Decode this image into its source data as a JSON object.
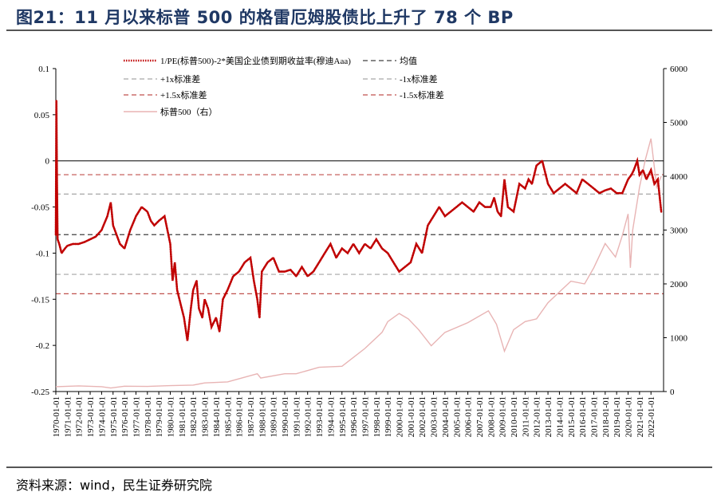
{
  "title": "图21：11 月以来标普 500 的格雷厄姆股债比上升了 78 个 BP",
  "source": "资料来源：wind，民生证券研究院",
  "colors": {
    "main": "#c00000",
    "mean": "#404040",
    "sd1": "#a6a6a6",
    "sd15": "#c0504d",
    "spx": "#e8b4b4",
    "zero": "#000000"
  },
  "chart_data": {
    "type": "line",
    "title": "",
    "xlabel": "",
    "ylabel": "",
    "ylim_left": [
      -0.25,
      0.1
    ],
    "ylim_right": [
      0,
      6000
    ],
    "left_ticks": [
      "0.1",
      "0.05",
      "0",
      "-0.05",
      "-0.1",
      "-0.15",
      "-0.2",
      "-0.25"
    ],
    "left_tick_values": [
      0.1,
      0.05,
      0,
      -0.05,
      -0.1,
      -0.15,
      -0.2,
      -0.25
    ],
    "right_ticks": [
      "6000",
      "5000",
      "4000",
      "3000",
      "2000",
      "1000",
      "0"
    ],
    "right_tick_values": [
      6000,
      5000,
      4000,
      3000,
      2000,
      1000,
      0
    ],
    "x_ticks": [
      "1970-01-01",
      "1971-01-01",
      "1972-01-01",
      "1973-01-01",
      "1974-01-01",
      "1975-01-01",
      "1976-01-01",
      "1977-01-01",
      "1978-01-01",
      "1979-01-01",
      "1980-01-01",
      "1981-01-01",
      "1982-01-01",
      "1983-01-01",
      "1984-01-01",
      "1985-01-01",
      "1986-01-01",
      "1987-01-01",
      "1988-01-01",
      "1989-01-01",
      "1990-01-01",
      "1991-01-01",
      "1992-01-01",
      "1993-01-01",
      "1994-01-01",
      "1995-01-01",
      "1996-01-01",
      "1997-01-01",
      "1998-01-01",
      "1999-01-01",
      "2000-01-01",
      "2001-01-01",
      "2002-01-01",
      "2003-01-01",
      "2004-01-01",
      "2005-01-01",
      "2006-01-01",
      "2007-01-01",
      "2008-01-01",
      "2009-01-01",
      "2010-01-01",
      "2011-01-01",
      "2012-01-01",
      "2013-01-01",
      "2014-01-01",
      "2015-01-01",
      "2016-01-01",
      "2017-01-01",
      "2018-01-01",
      "2019-01-01",
      "2020-01-01",
      "2021-01-01",
      "2022-01-01"
    ],
    "x_range": [
      1970.0,
      2023.1
    ],
    "legend": {
      "main": "1/PE(标普500)-2*美国企业债到期收益率(穆迪Aaa)",
      "mean": "均值",
      "p1": "+1x标准差",
      "m1": "-1x标准差",
      "p15": "+1.5x标准差",
      "m15": "-1.5x标准差",
      "spx": "标普500（右）"
    },
    "reference_lines": {
      "mean": -0.08,
      "plus_1sd": -0.036,
      "minus_1sd": -0.123,
      "plus_1_5sd": -0.015,
      "minus_1_5sd": -0.144,
      "zero": 0
    },
    "series": [
      {
        "name": "1/PE(标普500)-2*美国企业债到期收益率(穆迪Aaa)",
        "axis": "left",
        "x": [
          1970.0,
          1970.05,
          1970.1,
          1970.15,
          1970.3,
          1970.5,
          1970.8,
          1971.0,
          1971.5,
          1972.0,
          1972.5,
          1973.0,
          1973.5,
          1974.0,
          1974.5,
          1974.8,
          1975.0,
          1975.3,
          1975.6,
          1976.0,
          1976.5,
          1977.0,
          1977.5,
          1978.0,
          1978.3,
          1978.6,
          1979.0,
          1979.5,
          1980.0,
          1980.2,
          1980.4,
          1980.6,
          1980.9,
          1981.2,
          1981.5,
          1981.8,
          1982.0,
          1982.3,
          1982.5,
          1982.8,
          1983.0,
          1983.3,
          1983.6,
          1984.0,
          1984.3,
          1984.6,
          1985.0,
          1985.5,
          1986.0,
          1986.5,
          1987.0,
          1987.3,
          1987.6,
          1987.8,
          1988.0,
          1988.5,
          1989.0,
          1989.5,
          1990.0,
          1990.5,
          1991.0,
          1991.5,
          1992.0,
          1992.5,
          1993.0,
          1993.5,
          1994.0,
          1994.5,
          1995.0,
          1995.5,
          1996.0,
          1996.5,
          1997.0,
          1997.5,
          1998.0,
          1998.5,
          1999.0,
          1999.5,
          2000.0,
          2000.5,
          2001.0,
          2001.5,
          2002.0,
          2002.5,
          2003.0,
          2003.5,
          2004.0,
          2004.5,
          2005.0,
          2005.5,
          2006.0,
          2006.5,
          2007.0,
          2007.5,
          2008.0,
          2008.3,
          2008.6,
          2008.9,
          2009.2,
          2009.5,
          2010.0,
          2010.5,
          2011.0,
          2011.3,
          2011.6,
          2012.0,
          2012.5,
          2013.0,
          2013.5,
          2014.0,
          2014.5,
          2015.0,
          2015.5,
          2016.0,
          2016.5,
          2017.0,
          2017.5,
          2018.0,
          2018.5,
          2019.0,
          2019.5,
          2020.0,
          2020.3,
          2020.5,
          2020.8,
          2021.0,
          2021.3,
          2021.6,
          2022.0,
          2022.3,
          2022.6,
          2022.9
        ],
        "values": [
          -0.08,
          0.065,
          -0.02,
          -0.085,
          -0.09,
          -0.1,
          -0.095,
          -0.092,
          -0.09,
          -0.09,
          -0.088,
          -0.085,
          -0.082,
          -0.075,
          -0.06,
          -0.045,
          -0.07,
          -0.08,
          -0.09,
          -0.095,
          -0.075,
          -0.06,
          -0.05,
          -0.055,
          -0.065,
          -0.07,
          -0.065,
          -0.06,
          -0.09,
          -0.13,
          -0.11,
          -0.14,
          -0.155,
          -0.17,
          -0.195,
          -0.16,
          -0.14,
          -0.13,
          -0.16,
          -0.17,
          -0.15,
          -0.16,
          -0.18,
          -0.17,
          -0.185,
          -0.15,
          -0.14,
          -0.125,
          -0.12,
          -0.11,
          -0.105,
          -0.13,
          -0.15,
          -0.17,
          -0.12,
          -0.11,
          -0.105,
          -0.12,
          -0.12,
          -0.118,
          -0.125,
          -0.115,
          -0.125,
          -0.12,
          -0.11,
          -0.1,
          -0.09,
          -0.105,
          -0.095,
          -0.1,
          -0.09,
          -0.1,
          -0.09,
          -0.095,
          -0.085,
          -0.095,
          -0.1,
          -0.11,
          -0.12,
          -0.115,
          -0.11,
          -0.09,
          -0.1,
          -0.07,
          -0.06,
          -0.05,
          -0.06,
          -0.055,
          -0.05,
          -0.045,
          -0.05,
          -0.055,
          -0.045,
          -0.05,
          -0.05,
          -0.04,
          -0.055,
          -0.06,
          -0.02,
          -0.05,
          -0.055,
          -0.025,
          -0.03,
          -0.02,
          -0.025,
          -0.005,
          0.0,
          -0.025,
          -0.035,
          -0.03,
          -0.025,
          -0.03,
          -0.035,
          -0.02,
          -0.025,
          -0.03,
          -0.035,
          -0.032,
          -0.03,
          -0.035,
          -0.035,
          -0.02,
          -0.015,
          -0.01,
          0.0,
          -0.015,
          -0.01,
          -0.02,
          -0.01,
          -0.025,
          -0.02,
          -0.055
        ]
      },
      {
        "name": "标普500（右）",
        "axis": "right",
        "x": [
          1970.0,
          1972.0,
          1974.0,
          1974.8,
          1976.0,
          1978.0,
          1980.0,
          1982.0,
          1983.0,
          1985.0,
          1987.6,
          1987.9,
          1990.0,
          1991.0,
          1993.0,
          1995.0,
          1997.0,
          1998.5,
          1999.0,
          2000.0,
          2000.8,
          2001.7,
          2002.8,
          2004.0,
          2006.0,
          2007.8,
          2008.5,
          2009.2,
          2010.0,
          2011.0,
          2012.0,
          2013.0,
          2014.0,
          2015.0,
          2016.2,
          2017.0,
          2018.0,
          2018.9,
          2019.5,
          2020.0,
          2020.2,
          2020.4,
          2021.0,
          2021.5,
          2022.0,
          2022.5,
          2022.9
        ],
        "values": [
          90,
          105,
          90,
          65,
          100,
          95,
          110,
          120,
          160,
          180,
          330,
          250,
          330,
          330,
          450,
          470,
          800,
          1100,
          1300,
          1450,
          1350,
          1150,
          850,
          1100,
          1280,
          1500,
          1250,
          750,
          1150,
          1300,
          1350,
          1650,
          1850,
          2050,
          2000,
          2300,
          2750,
          2500,
          2900,
          3300,
          2300,
          3000,
          3800,
          4300,
          4700,
          3800,
          4000
        ]
      }
    ]
  }
}
